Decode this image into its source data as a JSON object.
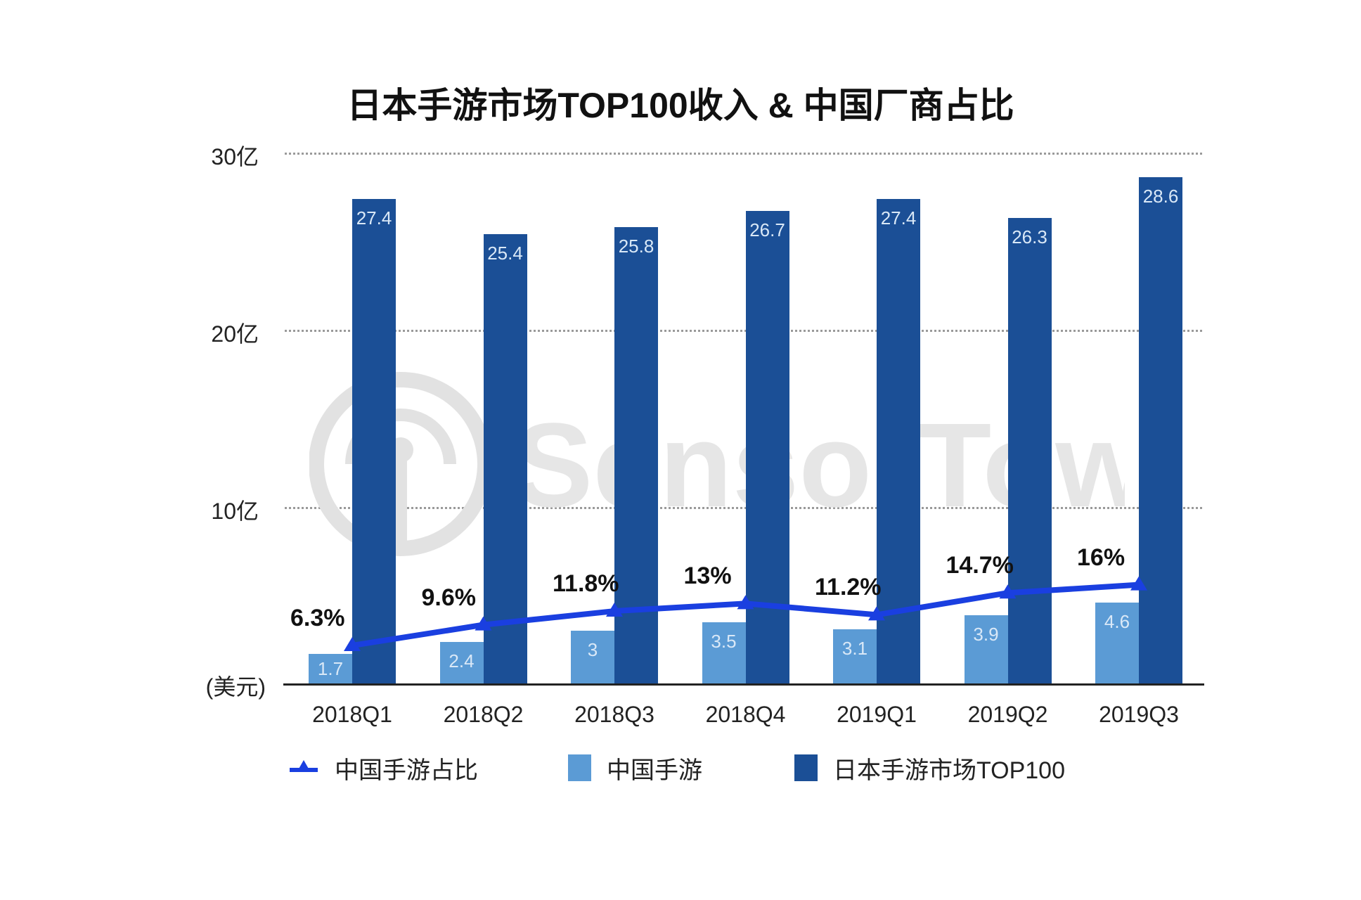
{
  "chart_data": {
    "type": "bar",
    "title": "日本手游市场TOP100收入 & 中国厂商占比",
    "xlabel": "",
    "ylabel": "(美元)",
    "ylim": [
      0,
      30
    ],
    "y_ticks": [
      "10亿",
      "20亿",
      "30亿"
    ],
    "y_unit": "(美元)",
    "grid": true,
    "legend_position": "bottom",
    "categories": [
      "2018Q1",
      "2018Q2",
      "2018Q3",
      "2018Q4",
      "2019Q1",
      "2019Q2",
      "2019Q3"
    ],
    "series": [
      {
        "name": "中国手游",
        "type": "bar",
        "color": "#5b9bd5",
        "unit": "亿美元",
        "values": [
          1.7,
          2.4,
          3,
          3.5,
          3.1,
          3.9,
          4.6
        ],
        "labels": [
          "1.7",
          "2.4",
          "3",
          "3.5",
          "3.1",
          "3.9",
          "4.6"
        ]
      },
      {
        "name": "日本手游市场TOP100",
        "type": "bar",
        "color": "#1b4f96",
        "unit": "亿美元",
        "values": [
          27.4,
          25.4,
          25.8,
          26.7,
          27.4,
          26.3,
          28.6
        ],
        "labels": [
          "27.4",
          "25.4",
          "25.8",
          "26.7",
          "27.4",
          "26.3",
          "28.6"
        ]
      },
      {
        "name": "中国手游占比",
        "type": "line",
        "color": "#1a3fe0",
        "unit": "%",
        "values": [
          6.3,
          9.6,
          11.8,
          13,
          11.2,
          14.7,
          16
        ],
        "labels": [
          "6.3%",
          "9.6%",
          "11.8%",
          "13%",
          "11.2%",
          "14.7%",
          "16%"
        ]
      }
    ],
    "legend": [
      "中国手游占比",
      "中国手游",
      "日本手游市场TOP100"
    ],
    "watermark": "SensorTower"
  }
}
